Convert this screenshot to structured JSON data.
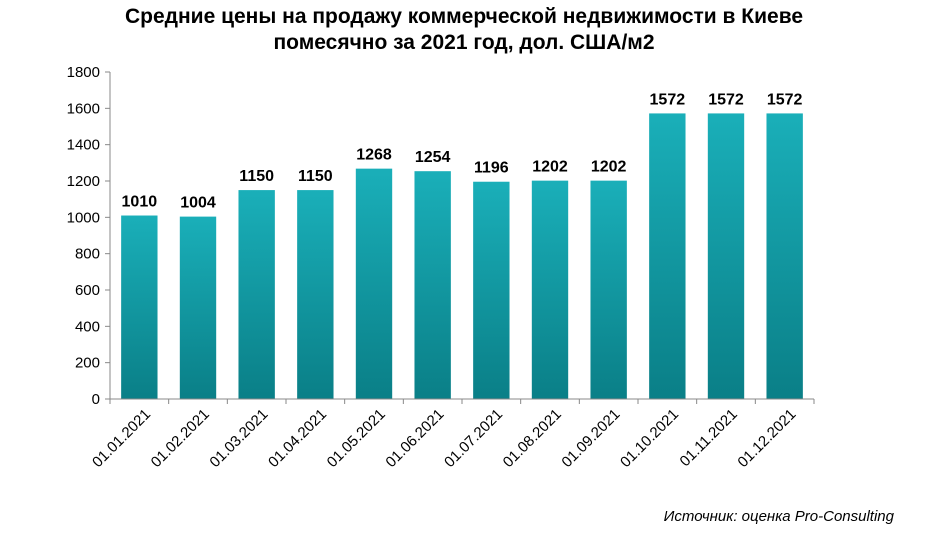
{
  "chart_data": {
    "type": "bar",
    "title_lines": [
      "Средние цены на продажу коммерческой недвижимости в Киеве",
      "помесячно за 2021 год, дол. США/м2"
    ],
    "categories": [
      "01.01.2021",
      "01.02.2021",
      "01.03.2021",
      "01.04.2021",
      "01.05.2021",
      "01.06.2021",
      "01.07.2021",
      "01.08.2021",
      "01.09.2021",
      "01.10.2021",
      "01.11.2021",
      "01.12.2021"
    ],
    "values": [
      1010,
      1004,
      1150,
      1150,
      1268,
      1254,
      1196,
      1202,
      1202,
      1572,
      1572,
      1572
    ],
    "ylim": [
      0,
      1800
    ],
    "yticks": [
      0,
      200,
      400,
      600,
      800,
      1000,
      1200,
      1400,
      1600,
      1800
    ],
    "xlabel": "",
    "ylabel": "",
    "grid": false,
    "legend": "none",
    "bar_color_top": "#1aafb9",
    "bar_color_bottom": "#0a7f87"
  },
  "source": "Источник: оценка Pro-Consulting"
}
